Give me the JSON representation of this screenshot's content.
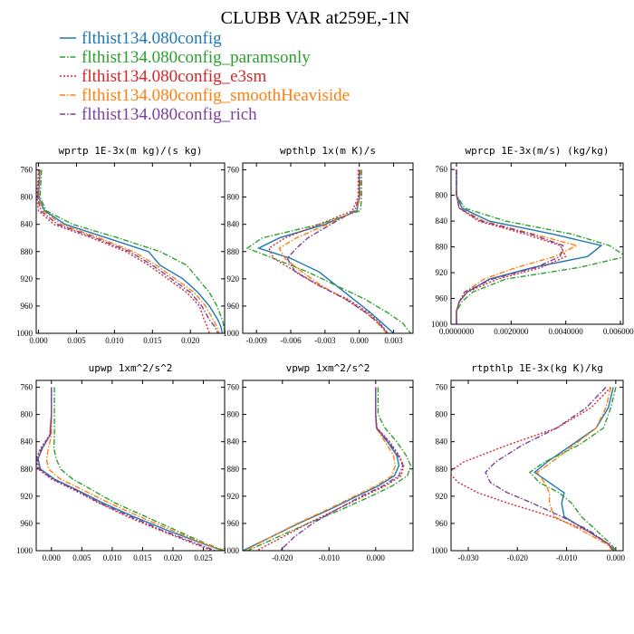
{
  "figure": {
    "title": "CLUBB VAR at259E,-1N",
    "legend": [
      {
        "label": "flthist134.080config",
        "color": "#1f77b4",
        "dash": "solid"
      },
      {
        "label": "flthist134.080config_paramsonly",
        "color": "#2ca02c",
        "dash": "dashdot"
      },
      {
        "label": "flthist134.080config_e3sm",
        "color": "#d62728",
        "dash": "dot"
      },
      {
        "label": "flthist134.080config_smoothHeaviside",
        "color": "#ff7f0e",
        "dash": "dashdot"
      },
      {
        "label": "flthist134.080config_rich",
        "color": "#7b3f9e",
        "dash": "dashdot"
      }
    ]
  },
  "chart_data": [
    {
      "type": "line",
      "title": "wprtp  1E-3x(m kg)/(s kg)",
      "xlim": [
        -0.0003,
        0.0245
      ],
      "ylim": [
        1000,
        750
      ],
      "xticks": [
        0.0,
        0.005,
        0.01,
        0.015,
        0.02
      ],
      "xticklabels": [
        "0.000",
        "0.005",
        "0.010",
        "0.015",
        "0.020"
      ],
      "yticks": [
        760,
        800,
        840,
        880,
        920,
        960,
        1000
      ],
      "y": [
        760,
        780,
        800,
        820,
        840,
        860,
        880,
        900,
        920,
        940,
        960,
        980,
        990,
        1000
      ],
      "series": [
        {
          "name": "flthist134.080config",
          "values": [
            0.0002,
            0.0001,
            0.0,
            0.0008,
            0.0035,
            0.009,
            0.0145,
            0.016,
            0.019,
            0.021,
            0.0225,
            0.0236,
            0.024,
            0.0242
          ]
        },
        {
          "name": "flthist134.080config_paramsonly",
          "values": [
            0.0004,
            0.0003,
            0.0002,
            0.001,
            0.0045,
            0.0105,
            0.016,
            0.0195,
            0.021,
            0.0225,
            0.0235,
            0.0242,
            0.0244,
            0.0245
          ]
        },
        {
          "name": "flthist134.080config_e3sm",
          "values": [
            0.0,
            -0.0001,
            -0.0002,
            0.0,
            0.002,
            0.007,
            0.0115,
            0.0145,
            0.017,
            0.0195,
            0.0212,
            0.0218,
            0.0222,
            0.0225
          ]
        },
        {
          "name": "flthist134.080config_smoothHeaviside",
          "values": [
            0.0002,
            0.0001,
            0.0,
            0.0006,
            0.003,
            0.008,
            0.0125,
            0.0155,
            0.018,
            0.0205,
            0.022,
            0.023,
            0.0235,
            0.0238
          ]
        },
        {
          "name": "flthist134.080config_rich",
          "values": [
            0.0001,
            0.0,
            -0.0001,
            0.0003,
            0.0025,
            0.0075,
            0.012,
            0.015,
            0.0175,
            0.02,
            0.0215,
            0.0225,
            0.0232,
            0.0236
          ]
        }
      ]
    },
    {
      "type": "line",
      "title": "wpthlp  1x(m K)/s",
      "xlim": [
        -0.0102,
        0.0047
      ],
      "ylim": [
        1000,
        750
      ],
      "xticks": [
        -0.009,
        -0.006,
        -0.003,
        0.0,
        0.003
      ],
      "xticklabels": [
        "-0.009",
        "-0.006",
        "-0.003",
        "0.000",
        "0.003"
      ],
      "yticks": [
        760,
        800,
        840,
        880,
        920,
        960,
        1000
      ],
      "y": [
        760,
        800,
        820,
        840,
        860,
        875,
        890,
        910,
        930,
        950,
        970,
        985,
        1000
      ],
      "series": [
        {
          "name": "flthist134.080config",
          "values": [
            0.0,
            0.0,
            -0.0002,
            -0.003,
            -0.007,
            -0.0088,
            -0.006,
            -0.0035,
            -0.002,
            -0.0005,
            0.001,
            0.002,
            0.003
          ]
        },
        {
          "name": "flthist134.080config_paramsonly",
          "values": [
            0.0002,
            0.0002,
            0.0001,
            -0.0035,
            -0.0085,
            -0.0098,
            -0.0075,
            -0.0045,
            -0.002,
            0.0005,
            0.0025,
            0.0038,
            0.0045
          ]
        },
        {
          "name": "flthist134.080config_e3sm",
          "values": [
            -0.0001,
            -0.0001,
            -0.0006,
            -0.0035,
            -0.0065,
            -0.0079,
            -0.0075,
            -0.0055,
            -0.0035,
            -0.001,
            0.0008,
            0.0018,
            0.0025
          ]
        },
        {
          "name": "flthist134.080config_smoothHeaviside",
          "values": [
            0.0001,
            0.0001,
            -0.0003,
            -0.0028,
            -0.0055,
            -0.007,
            -0.0065,
            -0.005,
            -0.0033,
            -0.0012,
            0.0006,
            0.0016,
            0.0024
          ]
        },
        {
          "name": "flthist134.080config_rich",
          "values": [
            0.0,
            0.0,
            -0.0004,
            -0.0025,
            -0.0045,
            -0.0055,
            -0.0063,
            -0.0056,
            -0.0035,
            -0.0012,
            0.0006,
            0.0017,
            0.0025
          ]
        }
      ]
    },
    {
      "type": "line",
      "title": "wprcp  1E-3x(m/s) (kg/kg)",
      "xlim": [
        -0.0002,
        0.0061
      ],
      "ylim": [
        1000,
        750
      ],
      "xticks": [
        0.0,
        0.002,
        0.004,
        0.006
      ],
      "xticklabels": [
        "0.0000000",
        "0.0020000",
        "0.0040000",
        "0.0060000"
      ],
      "yticks": [
        760,
        800,
        840,
        880,
        920,
        960,
        1000
      ],
      "y": [
        760,
        800,
        820,
        840,
        860,
        878,
        895,
        912,
        930,
        950,
        965,
        980,
        1000
      ],
      "series": [
        {
          "name": "flthist134.080config",
          "values": [
            0.0,
            0.0,
            0.0002,
            0.0012,
            0.0035,
            0.0053,
            0.0048,
            0.0028,
            0.0012,
            0.0004,
            0.0001,
            0.0,
            0.0
          ]
        },
        {
          "name": "flthist134.080config_paramsonly",
          "values": [
            0.0,
            0.0,
            0.0003,
            0.0018,
            0.0042,
            0.0056,
            0.0062,
            0.0045,
            0.0018,
            0.0006,
            0.0002,
            0.0,
            0.0
          ]
        },
        {
          "name": "flthist134.080config_e3sm",
          "values": [
            0.0,
            0.0,
            0.0001,
            0.0008,
            0.0025,
            0.0038,
            0.004,
            0.0031,
            0.0015,
            0.0004,
            0.0001,
            0.0,
            0.0
          ]
        },
        {
          "name": "flthist134.080config_smoothHeaviside",
          "values": [
            0.0,
            0.0,
            0.0001,
            0.001,
            0.0028,
            0.0044,
            0.0036,
            0.0022,
            0.001,
            0.0003,
            0.0001,
            0.0,
            0.0
          ]
        },
        {
          "name": "flthist134.080config_rich",
          "values": [
            0.0,
            0.0,
            0.0001,
            0.0009,
            0.0027,
            0.0039,
            0.0038,
            0.0029,
            0.0013,
            0.0003,
            0.0001,
            0.0,
            0.0
          ]
        }
      ]
    },
    {
      "type": "line",
      "title": "upwp  1xm^2/s^2",
      "xlim": [
        -0.0025,
        0.0285
      ],
      "ylim": [
        1000,
        750
      ],
      "xticks": [
        0.0,
        0.005,
        0.01,
        0.015,
        0.02,
        0.025
      ],
      "xticklabels": [
        "0.000",
        "0.005",
        "0.010",
        "0.015",
        "0.020",
        "0.025"
      ],
      "yticks": [
        760,
        800,
        840,
        880,
        920,
        960,
        1000
      ],
      "y": [
        760,
        800,
        830,
        850,
        865,
        880,
        895,
        910,
        930,
        950,
        970,
        990,
        1000
      ],
      "series": [
        {
          "name": "flthist134.080config",
          "values": [
            0.0,
            0.0,
            -0.0002,
            -0.0015,
            -0.0022,
            -0.0018,
            0.0005,
            0.004,
            0.0085,
            0.0135,
            0.019,
            0.025,
            0.0282
          ]
        },
        {
          "name": "flthist134.080config_paramsonly",
          "values": [
            0.0005,
            0.0005,
            0.0005,
            0.0004,
            0.0008,
            0.0015,
            0.0035,
            0.0065,
            0.0105,
            0.0155,
            0.0205,
            0.0255,
            0.0285
          ]
        },
        {
          "name": "flthist134.080config_e3sm",
          "values": [
            0.0,
            0.0,
            -0.0003,
            -0.0018,
            -0.0025,
            -0.0022,
            0.0,
            0.0035,
            0.0078,
            0.0125,
            0.0178,
            0.0235,
            0.0265
          ]
        },
        {
          "name": "flthist134.080config_smoothHeaviside",
          "values": [
            0.0,
            0.0,
            0.0,
            -0.0005,
            -0.0008,
            -0.0005,
            0.0015,
            0.005,
            0.0095,
            0.0145,
            0.0198,
            0.0252,
            0.028
          ]
        },
        {
          "name": "flthist134.080config_rich",
          "values": [
            0.0,
            0.0,
            -0.0002,
            -0.0016,
            -0.0023,
            -0.002,
            0.0002,
            0.0038,
            0.008,
            0.013,
            0.0182,
            0.024,
            0.027
          ]
        }
      ]
    },
    {
      "type": "line",
      "title": "vpwp  1xm^2/s^2",
      "xlim": [
        -0.0285,
        0.008
      ],
      "ylim": [
        1000,
        750
      ],
      "xticks": [
        -0.02,
        -0.01,
        0.0
      ],
      "xticklabels": [
        "-0.020",
        "-0.010",
        "0.000"
      ],
      "yticks": [
        760,
        800,
        840,
        880,
        920,
        960,
        1000
      ],
      "y": [
        760,
        800,
        820,
        840,
        860,
        875,
        890,
        905,
        920,
        940,
        960,
        980,
        1000
      ],
      "series": [
        {
          "name": "flthist134.080config",
          "values": [
            0.0,
            0.0,
            0.0002,
            0.0025,
            0.0045,
            0.005,
            0.004,
            0.0005,
            -0.004,
            -0.01,
            -0.0165,
            -0.0225,
            -0.0285
          ]
        },
        {
          "name": "flthist134.080config_paramsonly",
          "values": [
            0.0005,
            0.0005,
            0.002,
            0.0045,
            0.0065,
            0.0075,
            0.0068,
            0.0035,
            -0.001,
            -0.0075,
            -0.0145,
            -0.021,
            -0.0275
          ]
        },
        {
          "name": "flthist134.080config_e3sm",
          "values": [
            0.0,
            0.0,
            0.0003,
            0.003,
            0.005,
            0.006,
            0.0055,
            0.002,
            -0.0025,
            -0.0085,
            -0.0145,
            -0.02,
            -0.0255
          ]
        },
        {
          "name": "flthist134.080config_smoothHeaviside",
          "values": [
            0.0,
            0.0,
            0.0001,
            0.002,
            0.0038,
            0.0042,
            0.0035,
            0.0,
            -0.0045,
            -0.0105,
            -0.0168,
            -0.0225,
            -0.028
          ]
        },
        {
          "name": "flthist134.080config_rich",
          "values": [
            0.0,
            0.0,
            0.0002,
            0.0028,
            0.0048,
            0.0058,
            0.005,
            0.0015,
            -0.003,
            -0.0085,
            -0.0135,
            -0.0175,
            -0.0205
          ]
        }
      ]
    },
    {
      "type": "line",
      "title": "rtpthlp  1E-3x(kg K)/kg",
      "xlim": [
        -0.0335,
        0.0015
      ],
      "ylim": [
        1000,
        750
      ],
      "xticks": [
        -0.03,
        -0.02,
        -0.01,
        0.0
      ],
      "xticklabels": [
        "-0.030",
        "-0.020",
        "-0.010",
        "0.000"
      ],
      "yticks": [
        760,
        800,
        840,
        880,
        920,
        960,
        1000
      ],
      "y": [
        760,
        790,
        820,
        845,
        870,
        885,
        900,
        915,
        930,
        950,
        970,
        990,
        1000
      ],
      "series": [
        {
          "name": "flthist134.080config",
          "values": [
            -0.0005,
            -0.0015,
            -0.004,
            -0.009,
            -0.014,
            -0.0165,
            -0.0135,
            -0.0105,
            -0.011,
            -0.0105,
            -0.006,
            -0.0015,
            -0.0003
          ]
        },
        {
          "name": "flthist134.080config_paramsonly",
          "values": [
            0.0,
            -0.001,
            -0.0025,
            -0.0075,
            -0.0145,
            -0.0175,
            -0.0155,
            -0.0115,
            -0.009,
            -0.007,
            -0.004,
            -0.001,
            0.0
          ]
        },
        {
          "name": "flthist134.080config_e3sm",
          "values": [
            -0.001,
            -0.005,
            -0.012,
            -0.022,
            -0.031,
            -0.034,
            -0.032,
            -0.028,
            -0.022,
            -0.013,
            -0.006,
            -0.0015,
            -0.0005
          ]
        },
        {
          "name": "flthist134.080config_smoothHeaviside",
          "values": [
            -0.001,
            -0.002,
            -0.004,
            -0.0085,
            -0.013,
            -0.016,
            -0.0145,
            -0.0135,
            -0.0135,
            -0.0125,
            -0.007,
            -0.002,
            -0.0005
          ]
        },
        {
          "name": "flthist134.080config_rich",
          "values": [
            -0.002,
            -0.006,
            -0.012,
            -0.019,
            -0.0245,
            -0.0265,
            -0.0255,
            -0.022,
            -0.017,
            -0.011,
            -0.0055,
            -0.0015,
            -0.0005
          ]
        }
      ]
    }
  ]
}
